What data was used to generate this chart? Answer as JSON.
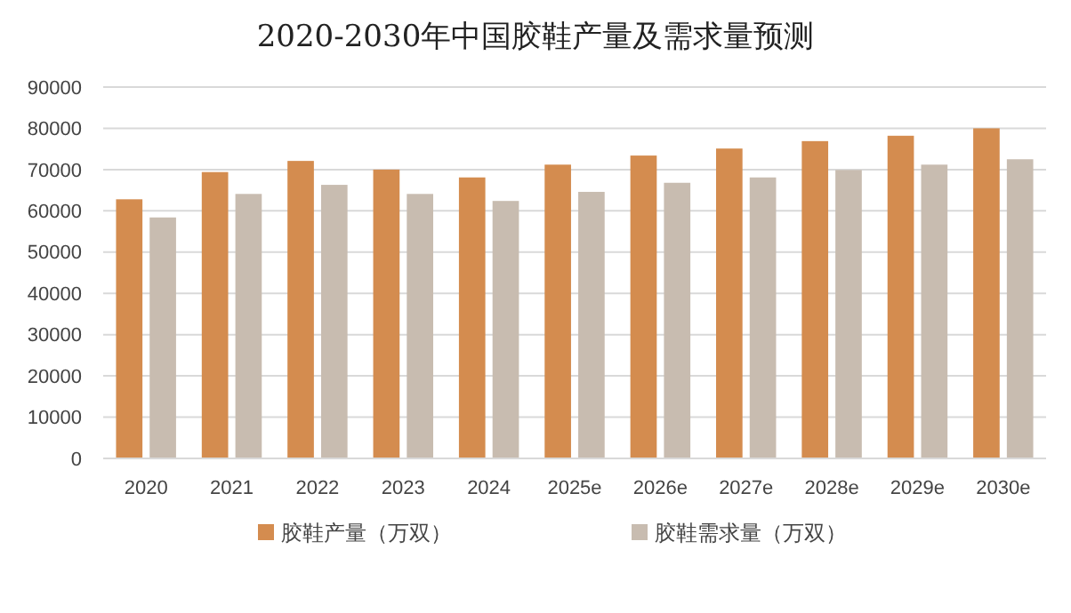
{
  "chart_data": {
    "type": "bar",
    "title": "2020-2030年中国胶鞋产量及需求量预测",
    "categories": [
      "2020",
      "2021",
      "2022",
      "2023",
      "2024",
      "2025e",
      "2026e",
      "2027e",
      "2028e",
      "2029e",
      "2030e"
    ],
    "series": [
      {
        "name": "胶鞋产量（万双）",
        "color": "#d48c4f",
        "values": [
          62800,
          69400,
          72100,
          70000,
          68100,
          71200,
          73400,
          75100,
          76900,
          78200,
          80000
        ]
      },
      {
        "name": "胶鞋需求量（万双）",
        "color": "#c8bcb0",
        "values": [
          58400,
          64100,
          66300,
          64100,
          62400,
          64600,
          66800,
          68100,
          69900,
          71200,
          72500
        ]
      }
    ],
    "ylim": [
      0,
      90000
    ],
    "yticks": [
      0,
      10000,
      20000,
      30000,
      40000,
      50000,
      60000,
      70000,
      80000,
      90000
    ],
    "grid": "y",
    "legend": "bottom"
  }
}
